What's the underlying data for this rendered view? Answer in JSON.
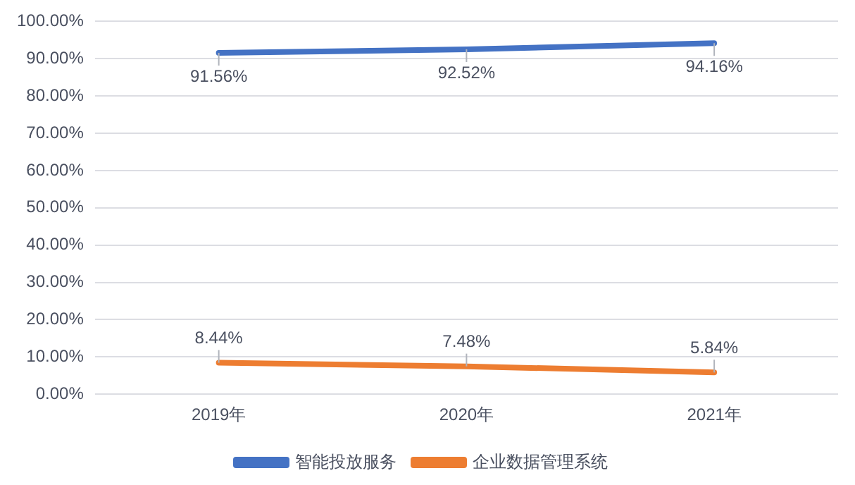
{
  "chart_data": {
    "type": "line",
    "categories": [
      "2019年",
      "2020年",
      "2021年"
    ],
    "series": [
      {
        "name": "智能投放服务",
        "color": "#4472c4",
        "values": [
          91.56,
          92.52,
          94.16
        ],
        "value_labels": [
          "91.56%",
          "92.52%",
          "94.16%"
        ]
      },
      {
        "name": "企业数据管理系统",
        "color": "#ed7d31",
        "values": [
          8.44,
          7.48,
          5.84
        ],
        "value_labels": [
          "8.44%",
          "7.48%",
          "5.84%"
        ]
      }
    ],
    "ylim": [
      0,
      100
    ],
    "yticks": [
      {
        "value": 0,
        "label": "0.00%"
      },
      {
        "value": 10,
        "label": "10.00%"
      },
      {
        "value": 20,
        "label": "20.00%"
      },
      {
        "value": 30,
        "label": "30.00%"
      },
      {
        "value": 40,
        "label": "40.00%"
      },
      {
        "value": 50,
        "label": "50.00%"
      },
      {
        "value": 60,
        "label": "60.00%"
      },
      {
        "value": 70,
        "label": "70.00%"
      },
      {
        "value": 80,
        "label": "80.00%"
      },
      {
        "value": 90,
        "label": "90.00%"
      },
      {
        "value": 100,
        "label": "100.00%"
      }
    ],
    "grid": "y",
    "legend": "bottom",
    "marker": "none",
    "line_style": "solid"
  }
}
